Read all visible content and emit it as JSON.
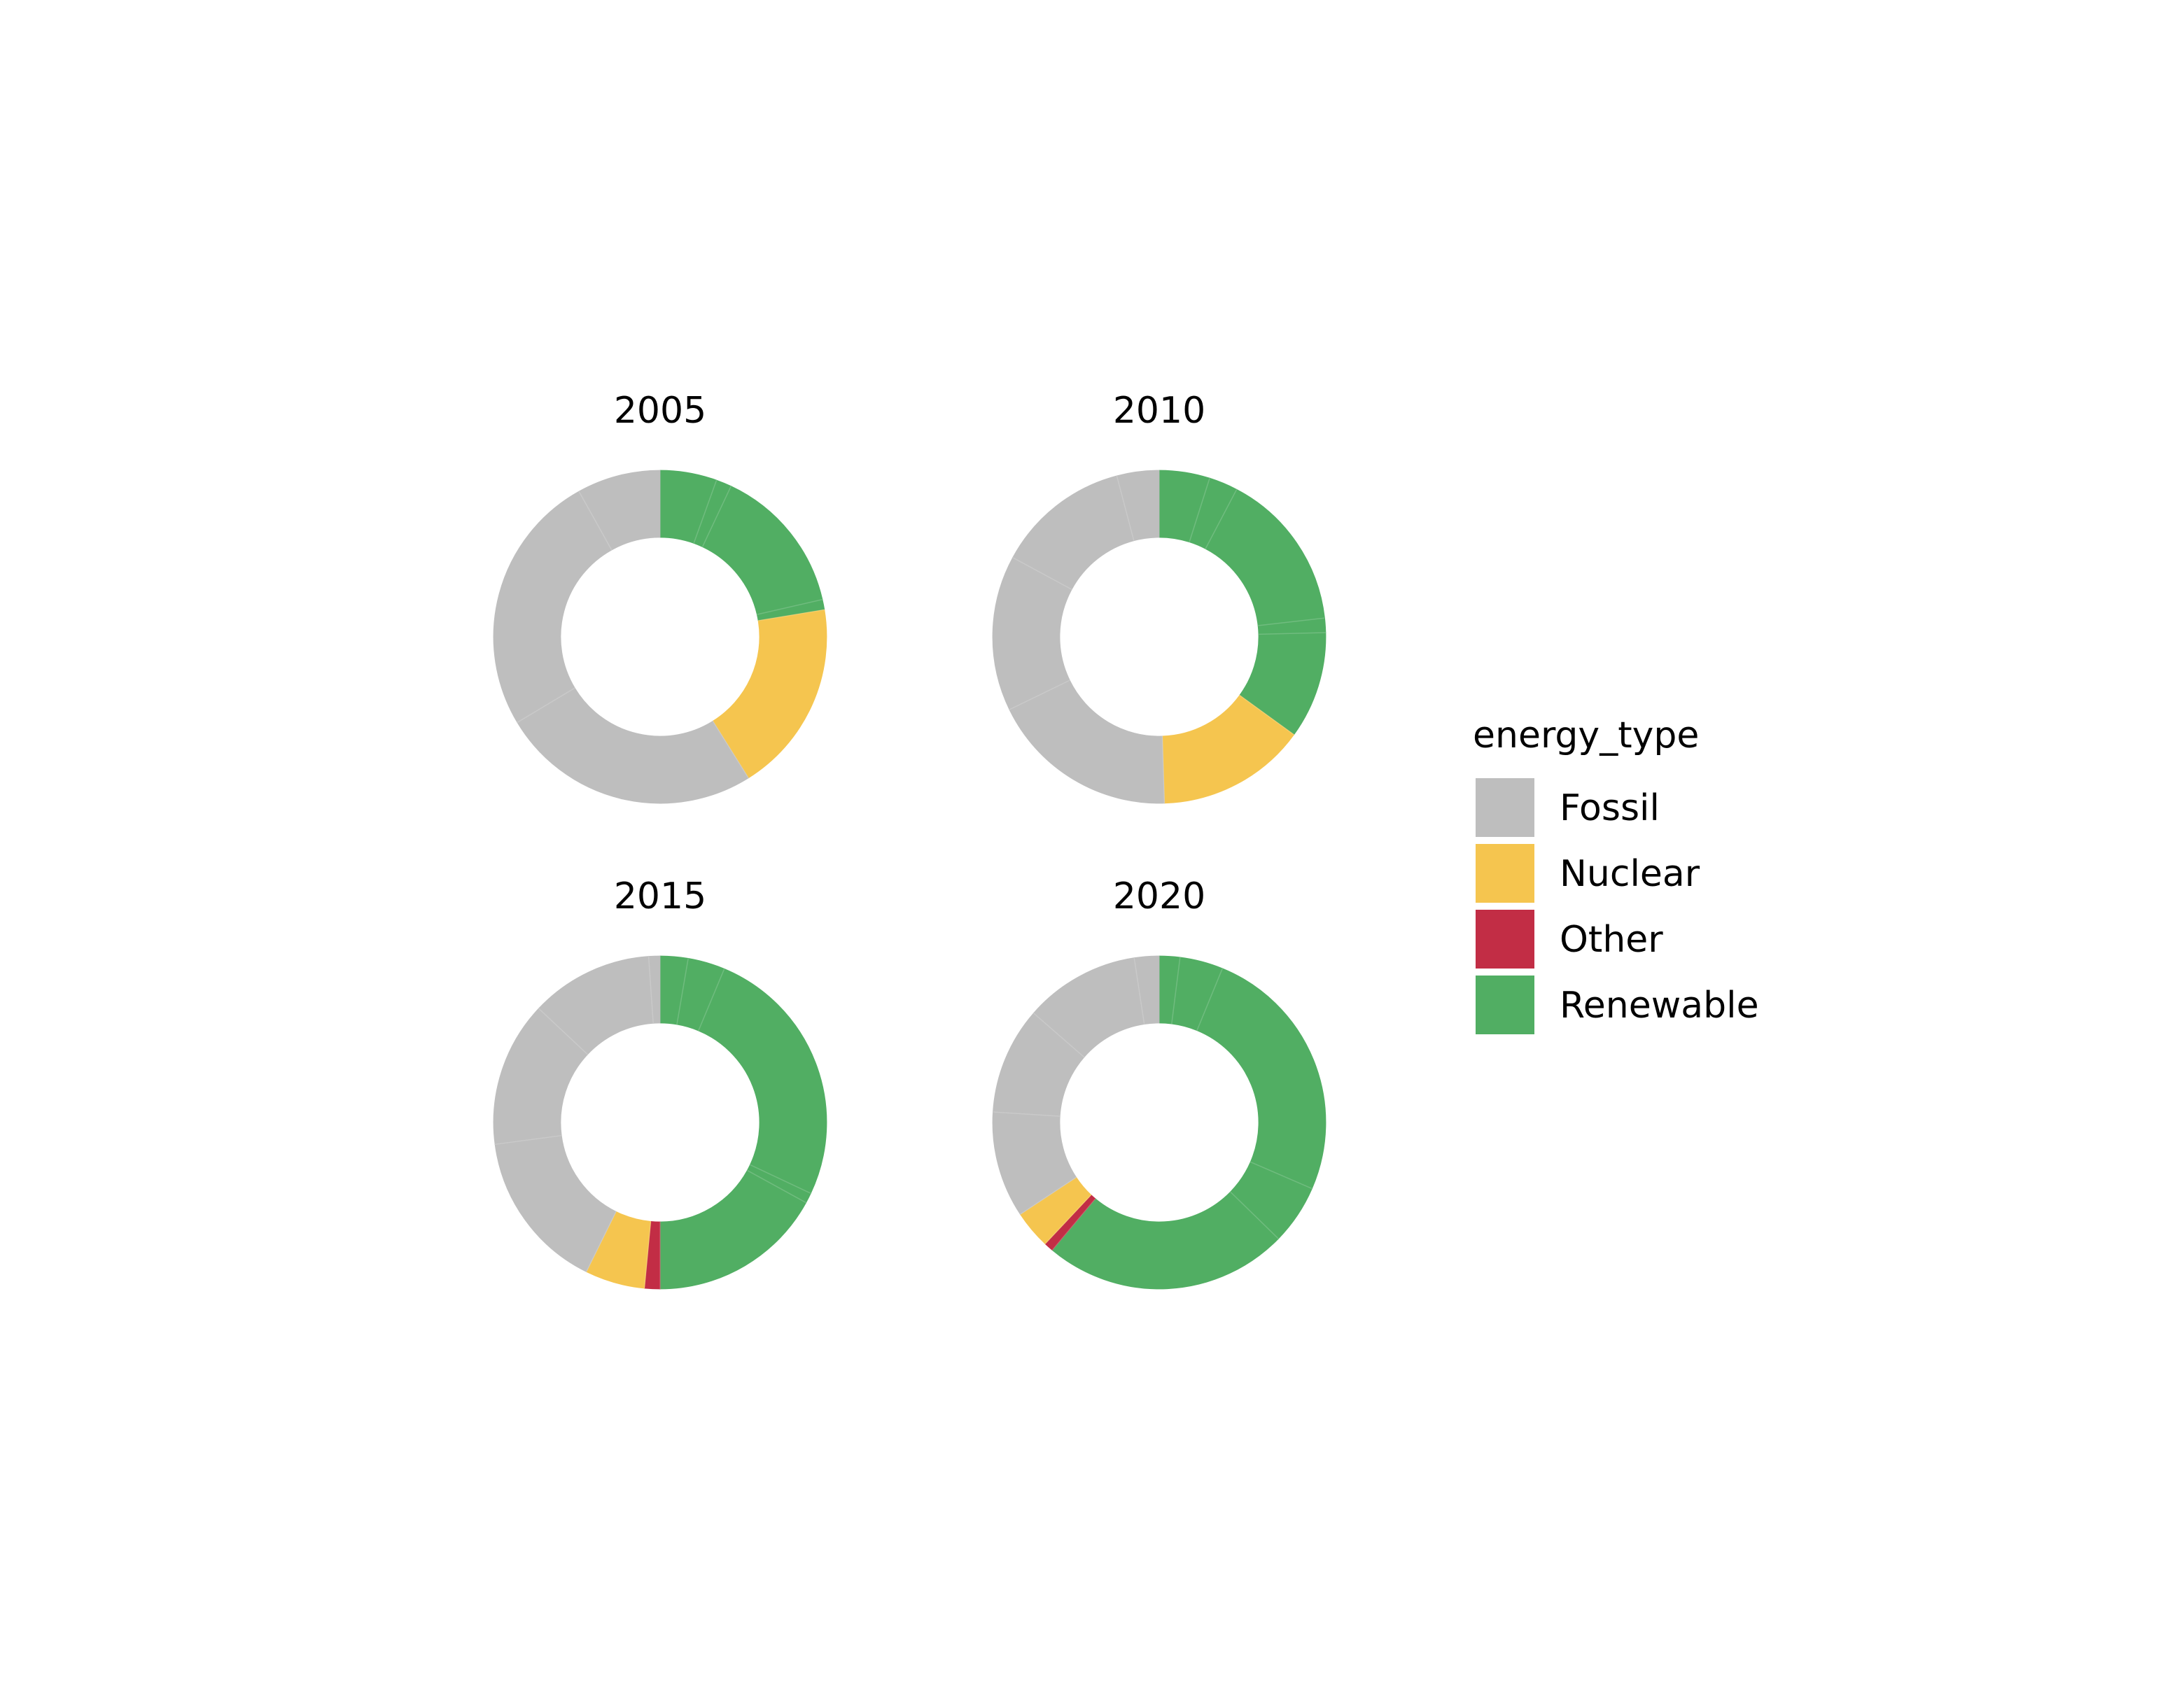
{
  "chart_data": {
    "type": "pie",
    "subtype": "donut",
    "legend": {
      "title": "energy_type",
      "position": "right",
      "entries": [
        "Fossil",
        "Nuclear",
        "Other",
        "Renewable"
      ]
    },
    "colors": {
      "Fossil": "#bebebe",
      "Nuclear": "#f5c54f",
      "Other": "#c22d45",
      "Renewable": "#51ae63"
    },
    "direction": "clockwise",
    "start": "top",
    "facets": [
      {
        "title": "2005",
        "slices": [
          {
            "energy_type": "Renewable",
            "value": 5.5
          },
          {
            "energy_type": "Renewable",
            "value": 1.5
          },
          {
            "energy_type": "Renewable",
            "value": 14.4
          },
          {
            "energy_type": "Renewable",
            "value": 1.0
          },
          {
            "energy_type": "Nuclear",
            "value": 18.7
          },
          {
            "energy_type": "Fossil",
            "value": 25.3
          },
          {
            "energy_type": "Fossil",
            "value": 25.5
          },
          {
            "energy_type": "Fossil",
            "value": 8.1
          }
        ]
      },
      {
        "title": "2010",
        "slices": [
          {
            "energy_type": "Renewable",
            "value": 4.9
          },
          {
            "energy_type": "Renewable",
            "value": 2.8
          },
          {
            "energy_type": "Renewable",
            "value": 15.5
          },
          {
            "energy_type": "Renewable",
            "value": 1.4
          },
          {
            "energy_type": "Renewable",
            "value": 10.4
          },
          {
            "energy_type": "Nuclear",
            "value": 14.5
          },
          {
            "energy_type": "Fossil",
            "value": 18.3
          },
          {
            "energy_type": "Fossil",
            "value": 15.1
          },
          {
            "energy_type": "Fossil",
            "value": 13.0
          },
          {
            "energy_type": "Fossil",
            "value": 4.1
          }
        ]
      },
      {
        "title": "2015",
        "slices": [
          {
            "energy_type": "Renewable",
            "value": 2.7
          },
          {
            "energy_type": "Renewable",
            "value": 3.6
          },
          {
            "energy_type": "Renewable",
            "value": 25.7
          },
          {
            "energy_type": "Renewable",
            "value": 1.0
          },
          {
            "energy_type": "Renewable",
            "value": 17.0
          },
          {
            "energy_type": "Other",
            "value": 1.5
          },
          {
            "energy_type": "Nuclear",
            "value": 5.8
          },
          {
            "energy_type": "Fossil",
            "value": 15.6
          },
          {
            "energy_type": "Fossil",
            "value": 14.1
          },
          {
            "energy_type": "Fossil",
            "value": 11.9
          },
          {
            "energy_type": "Fossil",
            "value": 1.1
          }
        ]
      },
      {
        "title": "2020",
        "slices": [
          {
            "energy_type": "Renewable",
            "value": 2.0
          },
          {
            "energy_type": "Renewable",
            "value": 4.2
          },
          {
            "energy_type": "Renewable",
            "value": 25.3
          },
          {
            "energy_type": "Renewable",
            "value": 5.8
          },
          {
            "energy_type": "Renewable",
            "value": 23.8
          },
          {
            "energy_type": "Other",
            "value": 0.9
          },
          {
            "energy_type": "Nuclear",
            "value": 3.7
          },
          {
            "energy_type": "Fossil",
            "value": 10.3
          },
          {
            "energy_type": "Fossil",
            "value": 10.4
          },
          {
            "energy_type": "Fossil",
            "value": 11.2
          },
          {
            "energy_type": "Fossil",
            "value": 2.4
          }
        ]
      }
    ]
  }
}
